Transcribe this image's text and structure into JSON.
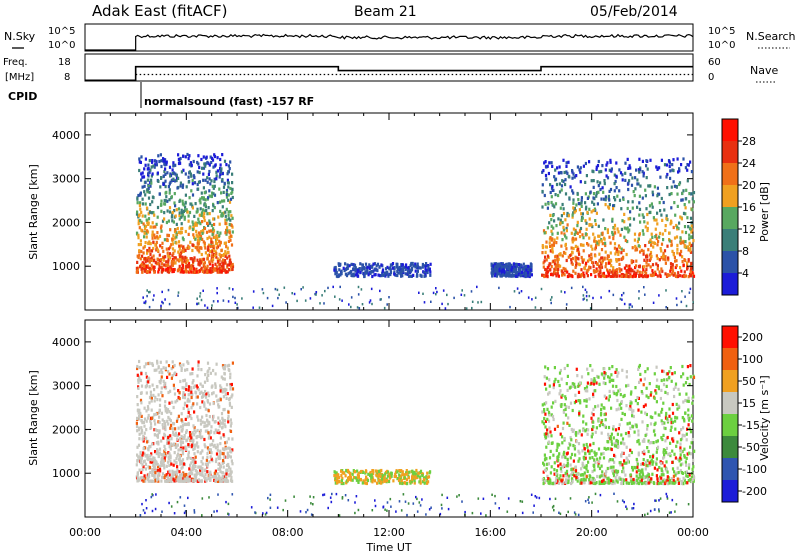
{
  "header": {
    "title_left": "Adak East (fitACF)",
    "title_center": "Beam 21",
    "title_right": "05/Feb/2014"
  },
  "nsky_panel": {
    "label_left": "N.Sky",
    "label_right": "N.Search",
    "left_ticks": [
      "10^5",
      "10^0"
    ],
    "right_ticks": [
      "10^5",
      "10^0"
    ]
  },
  "freq_panel": {
    "label_left": "Freq.\n[MHz]",
    "label_right": "Nave",
    "left_ticks": [
      "18",
      "8"
    ],
    "right_ticks": [
      "60",
      "0"
    ]
  },
  "cpid": {
    "label": "CPID",
    "mode_text": "normalsound (fast) -157 RF"
  },
  "x_axis": {
    "label": "Time UT",
    "ticks": [
      "00:00",
      "04:00",
      "08:00",
      "12:00",
      "16:00",
      "20:00",
      "00:00"
    ]
  },
  "power_panel": {
    "ylabel": "Slant Range [km]",
    "yticks": [
      "1000",
      "2000",
      "3000",
      "4000"
    ],
    "colorbar_label": "Power [dB]",
    "colorbar_ticks": [
      "4",
      "8",
      "12",
      "16",
      "20",
      "24",
      "28"
    ],
    "colors": [
      "#1c1cd8",
      "#2b52a8",
      "#3a7e78",
      "#58a860",
      "#f0a020",
      "#f07018",
      "#e83010",
      "#ff1000"
    ]
  },
  "velocity_panel": {
    "ylabel": "Slant Range [km]",
    "yticks": [
      "1000",
      "2000",
      "3000",
      "4000"
    ],
    "colorbar_label": "Velocity [m s⁻¹]",
    "colorbar_ticks": [
      "200",
      "100",
      "50",
      "15",
      "-15",
      "-50",
      "-100",
      "-200"
    ],
    "colors": [
      "#1c1cd8",
      "#2f55b0",
      "#3c8a3c",
      "#6cd040",
      "#c8c8c0",
      "#f0a020",
      "#f06010",
      "#ff1000"
    ]
  },
  "chart_data": {
    "type": "heatmap",
    "x_range_hours": [
      0,
      24
    ],
    "y_range_km": [
      0,
      4500
    ],
    "nsky_level": 3,
    "freq_schedule": [
      {
        "from_hour": 2.0,
        "to_hour": 10.0,
        "freq_mhz": 12.6
      },
      {
        "from_hour": 10.0,
        "to_hour": 18.0,
        "freq_mhz": 10.8
      },
      {
        "from_hour": 18.0,
        "to_hour": 24.0,
        "freq_mhz": 12.6
      }
    ],
    "nave_level": 15,
    "power_echo_regions": [
      {
        "t_start": 2.0,
        "t_end": 5.8,
        "range_bottom_km": 900,
        "range_top_km": 3600,
        "peak_db": 28
      },
      {
        "t_start": 9.8,
        "t_end": 13.6,
        "range_bottom_km": 800,
        "range_top_km": 1100,
        "peak_db": 6
      },
      {
        "t_start": 16.0,
        "t_end": 17.6,
        "range_bottom_km": 800,
        "range_top_km": 1100,
        "peak_db": 6
      },
      {
        "t_start": 18.0,
        "t_end": 24.0,
        "range_bottom_km": 800,
        "range_top_km": 3500,
        "peak_db": 28
      }
    ],
    "velocity_echo_regions": [
      {
        "t_start": 2.0,
        "t_end": 5.8,
        "range_bottom_km": 850,
        "range_top_km": 3600,
        "typical_m_s": 0
      },
      {
        "t_start": 9.8,
        "t_end": 13.6,
        "range_bottom_km": 800,
        "range_top_km": 1100,
        "typical_m_s": -40
      },
      {
        "t_start": 18.0,
        "t_end": 24.0,
        "range_bottom_km": 800,
        "range_top_km": 3500,
        "typical_m_s": 30
      }
    ]
  }
}
